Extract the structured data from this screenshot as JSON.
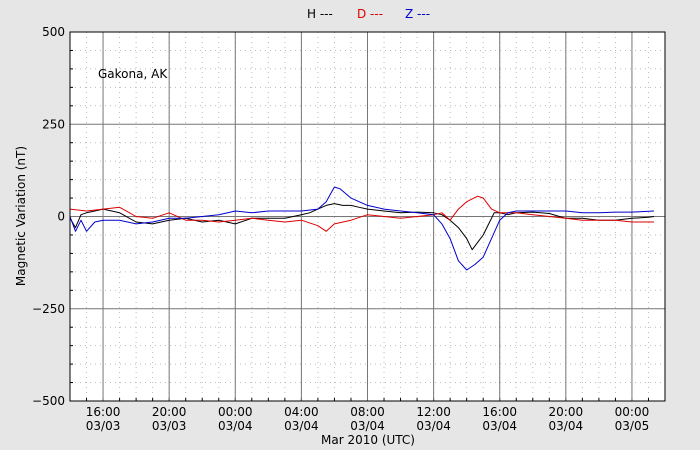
{
  "chart_data": {
    "type": "line",
    "annotation": "Gakona, AK",
    "xlabel": "Mar 2010 (UTC)",
    "ylabel": "Magnetic Variation (nT)",
    "ylim": [
      -500,
      500
    ],
    "yticks": [
      500,
      250,
      0,
      -250,
      -500
    ],
    "ytick_labels": [
      "500",
      "250",
      "0",
      "−250",
      "−500"
    ],
    "xlim": [
      "2010-03-03T14:00",
      "2010-03-05T02:00"
    ],
    "xticks": [
      "2010-03-03T16:00",
      "2010-03-03T20:00",
      "2010-03-04T00:00",
      "2010-03-04T04:00",
      "2010-03-04T08:00",
      "2010-03-04T12:00",
      "2010-03-04T16:00",
      "2010-03-04T20:00",
      "2010-03-05T00:00"
    ],
    "xtick_time": [
      "16:00",
      "20:00",
      "00:00",
      "04:00",
      "08:00",
      "12:00",
      "16:00",
      "20:00",
      "00:00"
    ],
    "xtick_date": [
      "03/03",
      "03/03",
      "03/04",
      "03/04",
      "03/04",
      "03/04",
      "03/04",
      "03/04",
      "03/05"
    ],
    "grid": true,
    "legend_position": "top-center",
    "series": [
      {
        "name": "H ---",
        "color": "#000000",
        "x": [
          "2010-03-03T14:00",
          "2010-03-03T14:20",
          "2010-03-03T14:40",
          "2010-03-03T15:00",
          "2010-03-03T15:30",
          "2010-03-03T16:00",
          "2010-03-03T17:00",
          "2010-03-03T18:00",
          "2010-03-03T19:00",
          "2010-03-03T20:00",
          "2010-03-03T21:00",
          "2010-03-03T22:00",
          "2010-03-03T23:00",
          "2010-03-04T00:00",
          "2010-03-04T01:00",
          "2010-03-04T02:00",
          "2010-03-04T03:00",
          "2010-03-04T04:00",
          "2010-03-04T04:30",
          "2010-03-04T05:00",
          "2010-03-04T05:30",
          "2010-03-04T06:00",
          "2010-03-04T06:30",
          "2010-03-04T07:00",
          "2010-03-04T07:30",
          "2010-03-04T08:00",
          "2010-03-04T09:00",
          "2010-03-04T10:00",
          "2010-03-04T11:00",
          "2010-03-04T12:00",
          "2010-03-04T12:30",
          "2010-03-04T13:00",
          "2010-03-04T13:30",
          "2010-03-04T14:00",
          "2010-03-04T14:20",
          "2010-03-04T14:40",
          "2010-03-04T15:00",
          "2010-03-04T15:20",
          "2010-03-04T15:40",
          "2010-03-04T16:00",
          "2010-03-04T16:30",
          "2010-03-04T17:00",
          "2010-03-04T18:00",
          "2010-03-04T19:00",
          "2010-03-04T20:00",
          "2010-03-04T21:00",
          "2010-03-04T22:00",
          "2010-03-04T23:00",
          "2010-03-05T00:00",
          "2010-03-05T01:00",
          "2010-03-05T01:20"
        ],
        "values": [
          -5,
          -30,
          5,
          10,
          15,
          20,
          10,
          -15,
          -20,
          -10,
          -5,
          -15,
          -10,
          -20,
          -5,
          -5,
          -5,
          5,
          10,
          20,
          30,
          35,
          30,
          30,
          25,
          20,
          15,
          10,
          12,
          10,
          5,
          -10,
          -30,
          -60,
          -90,
          -70,
          -50,
          -20,
          10,
          10,
          5,
          10,
          12,
          8,
          -5,
          -5,
          -10,
          -10,
          -5,
          -2,
          0
        ]
      },
      {
        "name": "D ---",
        "color": "#dd0000",
        "x": [
          "2010-03-03T14:00",
          "2010-03-03T15:00",
          "2010-03-03T16:00",
          "2010-03-03T17:00",
          "2010-03-03T18:00",
          "2010-03-03T19:00",
          "2010-03-03T20:00",
          "2010-03-03T21:00",
          "2010-03-03T22:00",
          "2010-03-03T23:00",
          "2010-03-04T00:00",
          "2010-03-04T01:00",
          "2010-03-04T02:00",
          "2010-03-04T03:00",
          "2010-03-04T04:00",
          "2010-03-04T05:00",
          "2010-03-04T05:30",
          "2010-03-04T06:00",
          "2010-03-04T07:00",
          "2010-03-04T08:00",
          "2010-03-04T09:00",
          "2010-03-04T10:00",
          "2010-03-04T11:00",
          "2010-03-04T12:00",
          "2010-03-04T12:30",
          "2010-03-04T13:00",
          "2010-03-04T13:30",
          "2010-03-04T14:00",
          "2010-03-04T14:40",
          "2010-03-04T15:00",
          "2010-03-04T15:30",
          "2010-03-04T16:00",
          "2010-03-04T17:00",
          "2010-03-04T18:00",
          "2010-03-04T19:00",
          "2010-03-04T20:00",
          "2010-03-04T21:00",
          "2010-03-04T22:00",
          "2010-03-04T23:00",
          "2010-03-05T00:00",
          "2010-03-05T01:20"
        ],
        "values": [
          20,
          15,
          20,
          25,
          0,
          -5,
          10,
          -10,
          -10,
          -15,
          -10,
          -5,
          -10,
          -15,
          -10,
          -25,
          -40,
          -20,
          -10,
          5,
          0,
          -5,
          0,
          5,
          10,
          -10,
          20,
          40,
          55,
          50,
          20,
          10,
          10,
          5,
          0,
          -5,
          -10,
          -10,
          -10,
          -15,
          -15
        ]
      },
      {
        "name": "Z ---",
        "color": "#0000cc",
        "x": [
          "2010-03-03T14:00",
          "2010-03-03T14:20",
          "2010-03-03T14:40",
          "2010-03-03T15:00",
          "2010-03-03T15:30",
          "2010-03-03T16:00",
          "2010-03-03T17:00",
          "2010-03-03T18:00",
          "2010-03-03T19:00",
          "2010-03-03T20:00",
          "2010-03-03T21:00",
          "2010-03-03T22:00",
          "2010-03-03T23:00",
          "2010-03-04T00:00",
          "2010-03-04T01:00",
          "2010-03-04T02:00",
          "2010-03-04T03:00",
          "2010-03-04T04:00",
          "2010-03-04T05:00",
          "2010-03-04T05:30",
          "2010-03-04T06:00",
          "2010-03-04T06:20",
          "2010-03-04T07:00",
          "2010-03-04T08:00",
          "2010-03-04T09:00",
          "2010-03-04T10:00",
          "2010-03-04T11:00",
          "2010-03-04T12:00",
          "2010-03-04T12:30",
          "2010-03-04T13:00",
          "2010-03-04T13:30",
          "2010-03-04T14:00",
          "2010-03-04T14:30",
          "2010-03-04T15:00",
          "2010-03-04T15:30",
          "2010-03-04T16:00",
          "2010-03-04T16:30",
          "2010-03-04T17:00",
          "2010-03-04T18:00",
          "2010-03-04T19:00",
          "2010-03-04T20:00",
          "2010-03-04T21:00",
          "2010-03-04T22:00",
          "2010-03-04T23:00",
          "2010-03-05T00:00",
          "2010-03-05T01:20"
        ],
        "values": [
          0,
          -40,
          -10,
          -40,
          -15,
          -10,
          -10,
          -20,
          -15,
          -5,
          -5,
          0,
          5,
          15,
          10,
          15,
          15,
          15,
          20,
          40,
          80,
          75,
          50,
          30,
          20,
          15,
          10,
          5,
          -20,
          -60,
          -120,
          -145,
          -130,
          -110,
          -60,
          -10,
          10,
          15,
          15,
          15,
          15,
          10,
          10,
          12,
          12,
          15
        ]
      }
    ]
  }
}
